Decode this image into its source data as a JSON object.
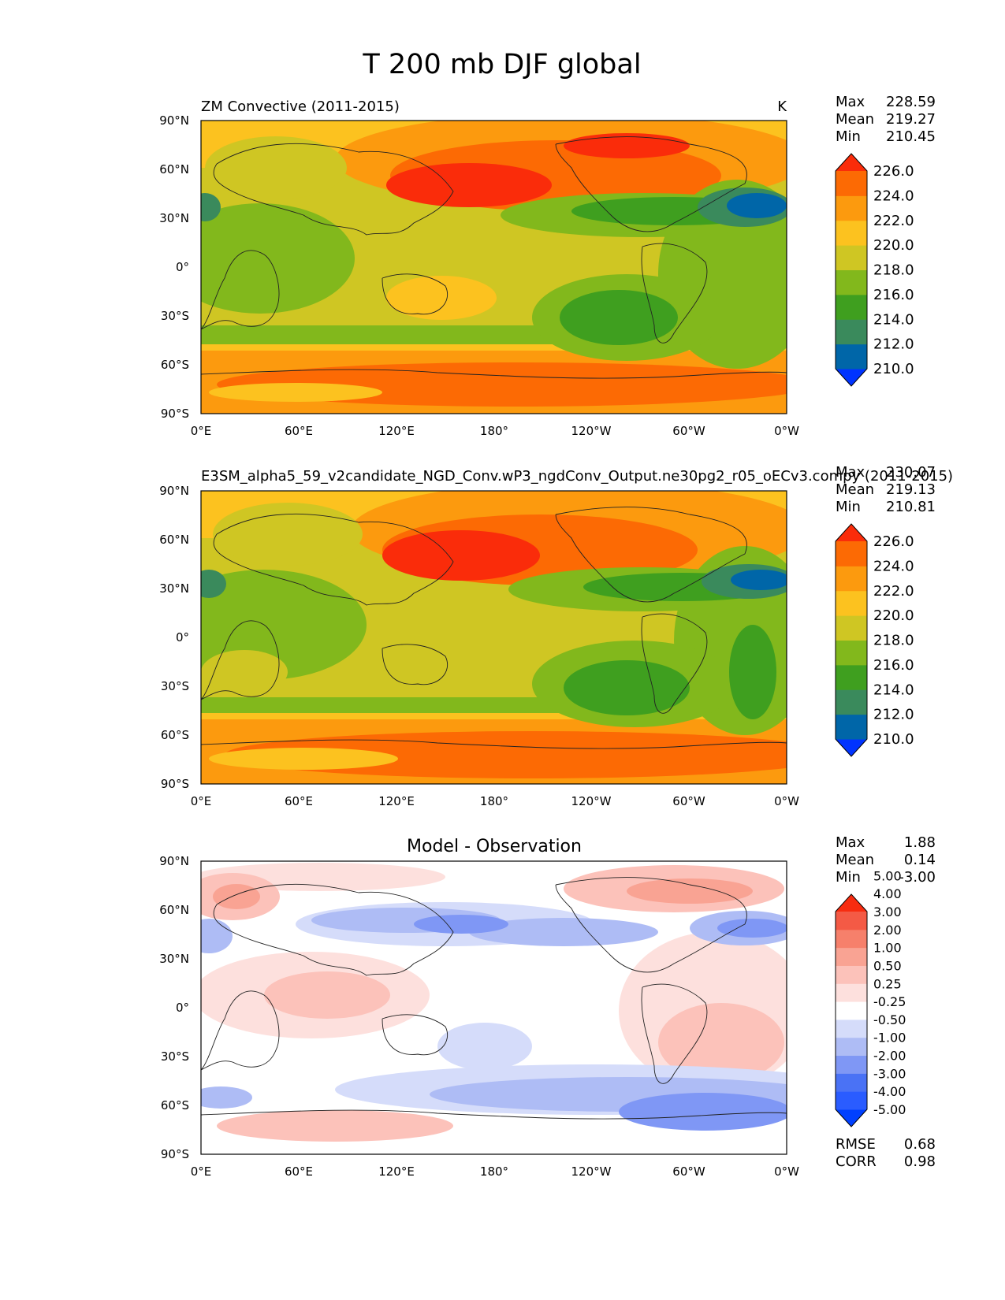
{
  "figure": {
    "title": "T 200 mb DJF global"
  },
  "chart_data": [
    {
      "type": "heatmap",
      "panel": "test",
      "title_left": "ZM Convective (2011-2015)",
      "title_right": "K",
      "x_ticks": [
        "0°E",
        "60°E",
        "120°E",
        "180°",
        "120°W",
        "60°W",
        "0°W"
      ],
      "y_ticks": [
        "90°N",
        "60°N",
        "30°N",
        "0°",
        "30°S",
        "60°S",
        "90°S"
      ],
      "stats": {
        "labels": [
          "Max",
          "Mean",
          "Min"
        ],
        "values": [
          "228.59",
          "219.27",
          "210.45"
        ]
      },
      "colorbar": {
        "colors": [
          "#0033ff",
          "#0066a8",
          "#3a8a5c",
          "#3f9f1f",
          "#82b81c",
          "#cfc623",
          "#fcc21f",
          "#fc9a0e",
          "#fc6a04",
          "#fa2c0a"
        ],
        "ticks": [
          "210.0",
          "212.0",
          "214.0",
          "216.0",
          "218.0",
          "220.0",
          "222.0",
          "224.0",
          "226.0"
        ]
      }
    },
    {
      "type": "heatmap",
      "panel": "reference",
      "title_left": "E3SM_alpha5_59_v2candidate_NGD_Conv.wP3_ngdConv_Output.ne30pg2_r05_oECv3.compy (2011-2015)",
      "title_right": "",
      "x_ticks": [
        "0°E",
        "60°E",
        "120°E",
        "180°",
        "120°W",
        "60°W",
        "0°W"
      ],
      "y_ticks": [
        "90°N",
        "60°N",
        "30°N",
        "0°",
        "30°S",
        "60°S",
        "90°S"
      ],
      "stats": {
        "labels": [
          "Max",
          "Mean",
          "Min"
        ],
        "values": [
          "230.07",
          "219.13",
          "210.81"
        ]
      },
      "colorbar": {
        "colors": [
          "#0033ff",
          "#0066a8",
          "#3a8a5c",
          "#3f9f1f",
          "#82b81c",
          "#cfc623",
          "#fcc21f",
          "#fc9a0e",
          "#fc6a04",
          "#fa2c0a"
        ],
        "ticks": [
          "210.0",
          "212.0",
          "214.0",
          "216.0",
          "218.0",
          "220.0",
          "222.0",
          "224.0",
          "226.0"
        ]
      }
    },
    {
      "type": "heatmap",
      "panel": "difference",
      "title_center": "Model - Observation",
      "x_ticks": [
        "0°E",
        "60°E",
        "120°E",
        "180°",
        "120°W",
        "60°W",
        "0°W"
      ],
      "y_ticks": [
        "90°N",
        "60°N",
        "30°N",
        "0°",
        "30°S",
        "60°S",
        "90°S"
      ],
      "stats": {
        "labels": [
          "Max",
          "Mean",
          "Min"
        ],
        "values": [
          "1.88",
          "0.14",
          "-3.00"
        ]
      },
      "colorbar": {
        "colors": [
          "#0040ff",
          "#2a5cff",
          "#4a72f5",
          "#7f97f5",
          "#aebcf5",
          "#d5dcfa",
          "#ffffff",
          "#fde0dd",
          "#fcc2ba",
          "#f9a393",
          "#f6806b",
          "#f45a45",
          "#f72c10"
        ],
        "ticks": [
          "-5.00",
          "-4.00",
          "-3.00",
          "-2.00",
          "-1.00",
          "-0.50",
          "-0.25",
          "0.25",
          "0.50",
          "1.00",
          "2.00",
          "3.00",
          "4.00",
          "5.00"
        ]
      },
      "metrics": {
        "labels": [
          "RMSE",
          "CORR"
        ],
        "values": [
          "0.68",
          "0.98"
        ]
      }
    }
  ]
}
